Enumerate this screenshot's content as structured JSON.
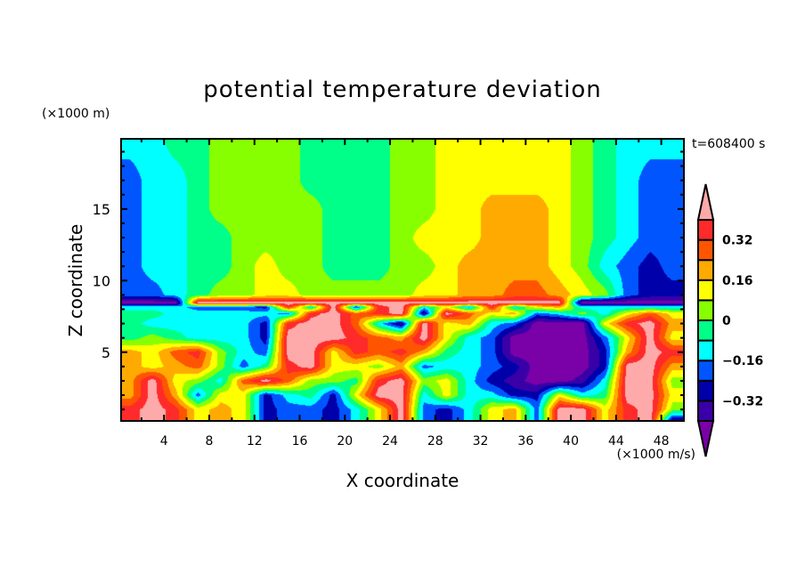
{
  "chart_data": {
    "type": "heatmap",
    "title": "potential temperature deviation",
    "xlabel": "X coordinate",
    "ylabel": "Z coordinate",
    "x_unit": "(×1000 m/s)",
    "y_unit": "(×1000 m)",
    "annotation": "t=608400 s",
    "xlim": [
      0.2,
      50
    ],
    "ylim": [
      0.2,
      19.9
    ],
    "xticks": [
      4,
      8,
      12,
      16,
      20,
      24,
      28,
      32,
      36,
      40,
      44,
      48
    ],
    "yticks": [
      5,
      10,
      15
    ],
    "colorbar": {
      "levels": [
        -0.4,
        -0.32,
        -0.24,
        -0.16,
        -0.08,
        0,
        0.08,
        0.16,
        0.24,
        0.32,
        0.4
      ],
      "labels": [
        "0.32",
        "0.16",
        "0",
        "−0.16",
        "−0.32"
      ],
      "label_values": [
        0.32,
        0.16,
        0,
        -0.16,
        -0.32
      ],
      "colors": [
        "#7a00a8",
        "#3a00a8",
        "#0000aa",
        "#0055ff",
        "#00ffff",
        "#00ff88",
        "#88ff00",
        "#ffff00",
        "#ffaa00",
        "#ff5500",
        "#ff2a2a",
        "#ffaaaa"
      ],
      "extend": "both"
    },
    "grid": {
      "x": [
        1,
        3,
        5,
        7,
        9,
        11,
        13,
        15,
        17,
        19,
        21,
        23,
        25,
        27,
        29,
        31,
        33,
        35,
        37,
        39,
        41,
        43,
        45,
        47,
        49
      ],
      "z": [
        19.9,
        17,
        15,
        13,
        11,
        9.0,
        8.45,
        8.15,
        7.7,
        7,
        6,
        5,
        4,
        3,
        2,
        1,
        0.2
      ],
      "values": [
        [
          -0.12,
          -0.12,
          -0.04,
          -0.04,
          0.04,
          0.04,
          0.04,
          0.04,
          -0.04,
          -0.04,
          -0.04,
          -0.04,
          0.04,
          0.04,
          0.12,
          0.12,
          0.12,
          0.12,
          0.12,
          0.12,
          0.04,
          -0.04,
          -0.12,
          -0.12,
          -0.12
        ],
        [
          -0.2,
          -0.12,
          -0.12,
          -0.04,
          0.04,
          0.04,
          0.04,
          0.04,
          -0.04,
          -0.04,
          -0.04,
          -0.04,
          0.04,
          0.04,
          0.12,
          0.12,
          0.12,
          0.12,
          0.12,
          0.12,
          0.04,
          -0.04,
          -0.12,
          -0.2,
          -0.2
        ],
        [
          -0.2,
          -0.12,
          -0.12,
          -0.04,
          0.04,
          0.04,
          0.04,
          0.04,
          0.04,
          -0.04,
          -0.04,
          -0.04,
          0.04,
          0.04,
          0.12,
          0.12,
          0.2,
          0.2,
          0.2,
          0.12,
          0.04,
          -0.04,
          -0.12,
          -0.2,
          -0.2
        ],
        [
          -0.2,
          -0.12,
          -0.12,
          -0.04,
          -0.04,
          0.04,
          0.04,
          0.04,
          0.04,
          -0.04,
          -0.04,
          -0.04,
          0.04,
          0.12,
          0.12,
          0.12,
          0.2,
          0.2,
          0.2,
          0.12,
          0.04,
          -0.04,
          -0.12,
          -0.2,
          -0.2
        ],
        [
          -0.2,
          -0.12,
          -0.12,
          -0.04,
          -0.04,
          0.04,
          0.12,
          0.04,
          0.04,
          -0.04,
          -0.04,
          -0.04,
          0.04,
          0.04,
          0.12,
          0.2,
          0.2,
          0.2,
          0.2,
          0.12,
          0.04,
          -0.12,
          -0.2,
          -0.28,
          -0.2
        ],
        [
          -0.2,
          -0.2,
          -0.12,
          -0.04,
          0.04,
          0.04,
          0.12,
          0.12,
          0.04,
          0.04,
          0.04,
          0.04,
          0.04,
          0.12,
          0.12,
          0.2,
          0.2,
          0.28,
          0.28,
          0.2,
          0.12,
          0.04,
          -0.2,
          -0.28,
          -0.28
        ],
        [
          -0.45,
          -0.45,
          -0.45,
          0.45,
          0.45,
          0.45,
          0.45,
          0.45,
          0.45,
          0.45,
          0.45,
          0.45,
          0.45,
          0.45,
          0.45,
          0.45,
          0.45,
          0.45,
          0.45,
          0.45,
          -0.45,
          -0.45,
          -0.45,
          -0.45,
          -0.45
        ],
        [
          -0.12,
          -0.12,
          -0.12,
          -0.2,
          -0.2,
          -0.2,
          -0.28,
          0.36,
          -0.12,
          0.45,
          -0.28,
          0.36,
          0.45,
          -0.12,
          0.12,
          -0.2,
          0.36,
          -0.12,
          0.12,
          0.2,
          -0.12,
          -0.12,
          -0.12,
          -0.12,
          -0.12
        ],
        [
          -0.04,
          -0.04,
          -0.12,
          -0.12,
          -0.12,
          -0.12,
          -0.12,
          -0.2,
          0.36,
          0.45,
          0.28,
          0.36,
          0.45,
          -0.36,
          0.45,
          0.28,
          0.12,
          0.2,
          -0.2,
          -0.12,
          0.04,
          -0.12,
          0.12,
          0.28,
          0.12
        ],
        [
          -0.04,
          -0.12,
          -0.12,
          -0.12,
          -0.12,
          -0.12,
          -0.28,
          0.36,
          0.45,
          0.45,
          0.28,
          -0.12,
          -0.36,
          0.45,
          0.12,
          0.2,
          -0.12,
          -0.2,
          -0.45,
          -0.45,
          -0.45,
          0.12,
          0.36,
          0.45,
          0.2
        ],
        [
          -0.04,
          0.04,
          -0.04,
          -0.12,
          -0.12,
          -0.12,
          -0.28,
          0.45,
          0.45,
          0.45,
          0.36,
          0.28,
          0.2,
          0.45,
          0.12,
          -0.12,
          -0.2,
          -0.45,
          -0.45,
          -0.45,
          -0.45,
          -0.2,
          0.12,
          0.45,
          0.12
        ],
        [
          0.2,
          0.12,
          0.28,
          0.36,
          0.04,
          -0.12,
          -0.2,
          0.45,
          0.45,
          0.12,
          0.36,
          0.28,
          0.36,
          0.2,
          -0.04,
          -0.12,
          -0.2,
          -0.45,
          -0.45,
          -0.45,
          -0.45,
          -0.28,
          0.2,
          0.45,
          0.36
        ],
        [
          0.2,
          0.12,
          0.2,
          0.28,
          0.04,
          -0.2,
          -0.04,
          0.36,
          0.45,
          0.12,
          0.12,
          0.04,
          0.2,
          -0.2,
          -0.12,
          -0.12,
          -0.2,
          -0.28,
          -0.45,
          -0.45,
          -0.45,
          -0.28,
          0.45,
          0.45,
          0.2
        ],
        [
          0.2,
          0.45,
          0.12,
          0.04,
          -0.12,
          0.28,
          0.45,
          0.28,
          0.04,
          0.04,
          -0.04,
          0.36,
          0.45,
          0.04,
          0.12,
          -0.12,
          -0.28,
          -0.36,
          -0.45,
          -0.45,
          -0.36,
          -0.12,
          0.45,
          0.45,
          0.04
        ],
        [
          0.2,
          0.45,
          0.2,
          -0.2,
          0.12,
          0.12,
          -0.28,
          -0.12,
          -0.04,
          -0.28,
          0.12,
          0.45,
          0.45,
          -0.12,
          0.12,
          -0.12,
          -0.12,
          -0.28,
          -0.28,
          0.12,
          -0.12,
          -0.04,
          0.45,
          0.45,
          0.12
        ],
        [
          0.36,
          0.45,
          0.36,
          0.12,
          0.2,
          0.12,
          -0.28,
          -0.2,
          -0.2,
          -0.28,
          -0.12,
          0.12,
          0.45,
          -0.2,
          -0.28,
          -0.12,
          0.12,
          0.2,
          -0.2,
          0.45,
          0.45,
          0.12,
          0.36,
          0.45,
          0.04
        ],
        [
          0.36,
          0.45,
          0.36,
          0.12,
          0.2,
          0.12,
          -0.28,
          -0.2,
          -0.2,
          -0.28,
          -0.12,
          0.12,
          0.45,
          -0.2,
          -0.28,
          -0.12,
          0.12,
          0.2,
          -0.2,
          0.45,
          0.45,
          0.12,
          0.36,
          0.45,
          -0.36
        ]
      ]
    }
  }
}
